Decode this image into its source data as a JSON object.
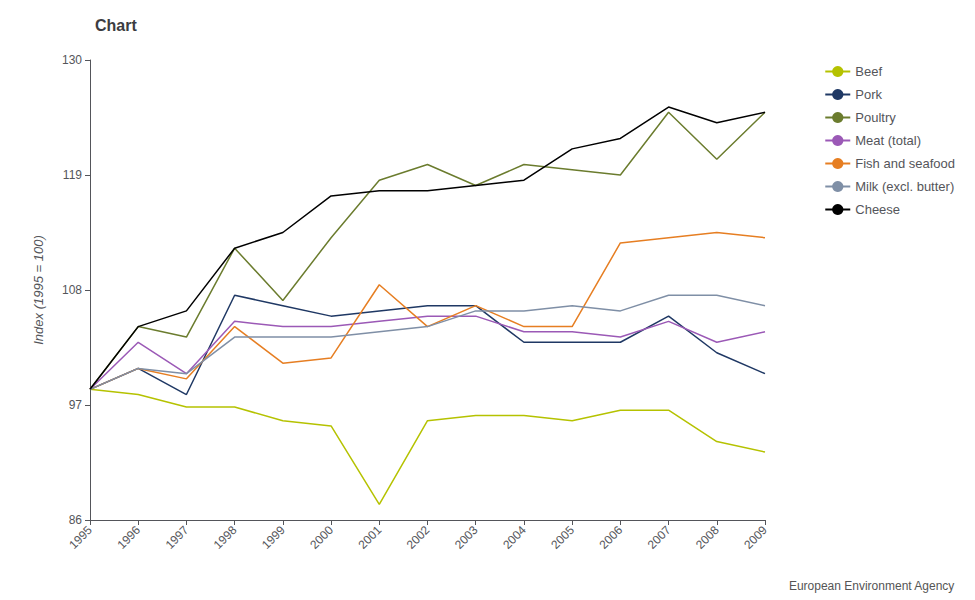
{
  "chart_data": {
    "type": "line",
    "title": "Chart",
    "ylabel": "Index (1995 = 100)",
    "categories": [
      "1995",
      "1996",
      "1997",
      "1998",
      "1999",
      "2000",
      "2001",
      "2002",
      "2003",
      "2004",
      "2005",
      "2006",
      "2007",
      "2008",
      "2009"
    ],
    "series": [
      {
        "name": "Beef",
        "color": "#b5c200",
        "values": [
          98.5,
          98.0,
          96.8,
          96.8,
          95.5,
          95.0,
          87.5,
          95.5,
          96.0,
          96.0,
          95.5,
          96.5,
          96.5,
          93.5,
          92.5
        ]
      },
      {
        "name": "Pork",
        "color": "#1f3864",
        "values": [
          98.5,
          100.5,
          98.0,
          107.5,
          106.5,
          105.5,
          106.0,
          106.5,
          106.5,
          103.0,
          103.0,
          103.0,
          105.5,
          102.0,
          100.0
        ]
      },
      {
        "name": "Poultry",
        "color": "#6b7c2e",
        "values": [
          98.5,
          104.5,
          103.5,
          112.0,
          107.0,
          113.0,
          118.5,
          120.0,
          118.0,
          120.0,
          119.5,
          119.0,
          125.0,
          120.5,
          125.0
        ]
      },
      {
        "name": "Meat (total)",
        "color": "#9b59b6",
        "values": [
          98.5,
          103.0,
          100.0,
          105.0,
          104.5,
          104.5,
          105.0,
          105.5,
          105.5,
          104.0,
          104.0,
          103.5,
          105.0,
          103.0,
          104.0
        ]
      },
      {
        "name": "Fish and seafood",
        "color": "#e67e22",
        "values": [
          98.5,
          100.5,
          99.5,
          104.5,
          101.0,
          101.5,
          108.5,
          104.5,
          106.5,
          104.5,
          104.5,
          112.5,
          113.0,
          113.5,
          113.0
        ]
      },
      {
        "name": "Milk (excl. butter)",
        "color": "#7f8fa6",
        "values": [
          98.5,
          100.5,
          100.0,
          103.5,
          103.5,
          103.5,
          104.0,
          104.5,
          106.0,
          106.0,
          106.5,
          106.0,
          107.5,
          107.5,
          106.5
        ]
      },
      {
        "name": "Cheese",
        "color": "#000000",
        "values": [
          98.5,
          104.5,
          106.0,
          112.0,
          113.5,
          117.0,
          117.5,
          117.5,
          118.0,
          118.5,
          121.5,
          122.5,
          125.5,
          124.0,
          125.0
        ]
      }
    ],
    "ylim": [
      86,
      130
    ],
    "yticks": [
      86,
      97,
      108,
      119,
      130
    ],
    "grid": false,
    "legend": "upper right",
    "annotations": [
      "European Environment Agency"
    ]
  }
}
